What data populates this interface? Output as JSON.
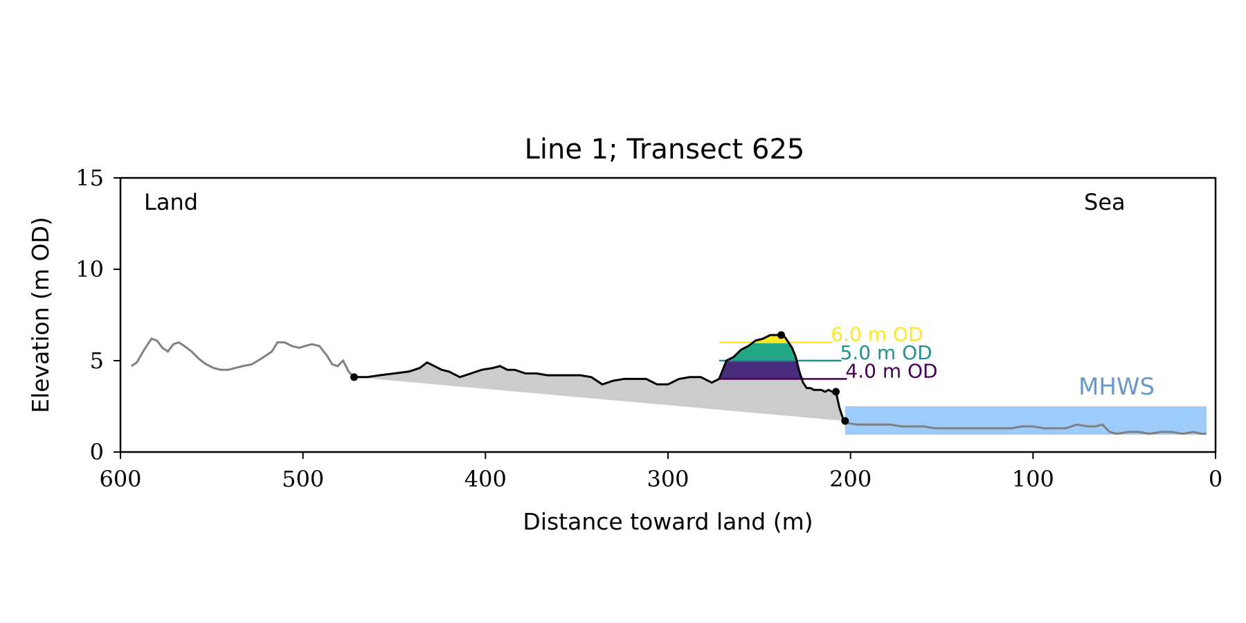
{
  "chart_data": {
    "type": "area",
    "title": "Line 1; Transect 625",
    "xlabel": "Distance toward land (m)",
    "ylabel": "Elevation (m OD)",
    "xlim": [
      600,
      0
    ],
    "ylim": [
      0,
      15
    ],
    "x_ticks": [
      600,
      500,
      400,
      300,
      200,
      100,
      0
    ],
    "y_ticks": [
      0,
      5,
      10,
      15
    ],
    "grid": false,
    "annotations": {
      "land": "Land",
      "sea": "Sea",
      "mhws": "MHWS"
    },
    "mhws": {
      "label": "MHWS",
      "elevation": 2.5,
      "x_start": 203,
      "x_end": 5,
      "color": "#9dcbfa"
    },
    "levels": [
      {
        "label": "6.0 m OD",
        "elevation": 6.0,
        "color": "#fde725",
        "line_end_x": 210
      },
      {
        "label": "5.0 m OD",
        "elevation": 5.0,
        "color": "#21918c",
        "line_end_x": 205
      },
      {
        "label": "4.0 m OD",
        "elevation": 4.0,
        "color": "#440154",
        "line_end_x": 202
      }
    ],
    "level_fills": [
      {
        "from": 6.0,
        "to": 7.0,
        "color": "#fde725"
      },
      {
        "from": 5.0,
        "to": 6.0,
        "color": "#22a884"
      },
      {
        "from": 4.0,
        "to": 5.0,
        "color": "#472d7b"
      }
    ],
    "level_fill_x_range": [
      272,
      210
    ],
    "profile_background": {
      "x": [
        594,
        591,
        587,
        583,
        580,
        577,
        574,
        571,
        568,
        565,
        561,
        557,
        553,
        549,
        545,
        541,
        537,
        533,
        528,
        523,
        520,
        517,
        514,
        510,
        506,
        502,
        499,
        495,
        491,
        487,
        484,
        481,
        478,
        475,
        472
      ],
      "y": [
        4.7,
        4.9,
        5.6,
        6.2,
        6.1,
        5.7,
        5.5,
        5.9,
        6.0,
        5.8,
        5.5,
        5.1,
        4.8,
        4.6,
        4.5,
        4.5,
        4.6,
        4.7,
        4.8,
        5.1,
        5.3,
        5.5,
        6.0,
        6.0,
        5.8,
        5.7,
        5.8,
        5.9,
        5.8,
        5.3,
        4.8,
        4.7,
        5.0,
        4.4,
        4.1
      ]
    },
    "profile_selected": {
      "x": [
        472,
        465,
        458,
        450,
        442,
        436,
        432,
        428,
        424,
        420,
        414,
        408,
        402,
        396,
        392,
        388,
        384,
        378,
        372,
        366,
        360,
        354,
        348,
        342,
        336,
        330,
        324,
        318,
        312,
        306,
        300,
        294,
        288,
        282,
        276,
        272,
        268,
        264,
        260,
        256,
        252,
        248,
        244,
        240,
        236,
        234,
        232,
        230,
        228,
        226,
        224,
        222,
        220,
        218,
        216,
        214,
        212,
        210,
        208,
        206,
        204,
        203
      ],
      "y": [
        4.1,
        4.1,
        4.2,
        4.3,
        4.4,
        4.6,
        4.9,
        4.7,
        4.5,
        4.4,
        4.1,
        4.3,
        4.5,
        4.6,
        4.7,
        4.5,
        4.5,
        4.3,
        4.3,
        4.2,
        4.2,
        4.2,
        4.2,
        4.1,
        3.7,
        3.9,
        4.0,
        4.0,
        4.0,
        3.7,
        3.7,
        4.0,
        4.1,
        4.1,
        3.8,
        4.0,
        5.0,
        5.2,
        5.6,
        5.8,
        6.1,
        6.2,
        6.4,
        6.4,
        6.3,
        6.0,
        5.7,
        5.2,
        4.4,
        3.8,
        3.5,
        3.5,
        3.4,
        3.4,
        3.4,
        3.3,
        3.4,
        3.3,
        3.3,
        2.4,
        1.8,
        1.7
      ]
    },
    "profile_sea": {
      "x": [
        203,
        196,
        190,
        184,
        178,
        172,
        166,
        160,
        154,
        148,
        142,
        136,
        130,
        124,
        118,
        112,
        106,
        100,
        94,
        88,
        82,
        76,
        70,
        66,
        62,
        58,
        54,
        48,
        42,
        36,
        30,
        24,
        18,
        12,
        8,
        5
      ],
      "y": [
        1.6,
        1.5,
        1.5,
        1.5,
        1.5,
        1.4,
        1.4,
        1.4,
        1.3,
        1.3,
        1.3,
        1.3,
        1.3,
        1.3,
        1.3,
        1.3,
        1.4,
        1.4,
        1.3,
        1.3,
        1.3,
        1.5,
        1.4,
        1.4,
        1.5,
        1.1,
        1.0,
        1.1,
        1.1,
        1.0,
        1.1,
        1.1,
        1.0,
        1.1,
        1.0,
        1.0
      ]
    },
    "key_points": [
      {
        "x": 472,
        "y": 4.1
      },
      {
        "x": 238,
        "y": 6.4
      },
      {
        "x": 208,
        "y": 3.3
      },
      {
        "x": 203,
        "y": 1.7
      }
    ],
    "wedge_fill_color": "#cccccc",
    "background_line_color": "#808080",
    "selected_line_color": "#000000",
    "mhws_label_color": "#6699cc"
  }
}
